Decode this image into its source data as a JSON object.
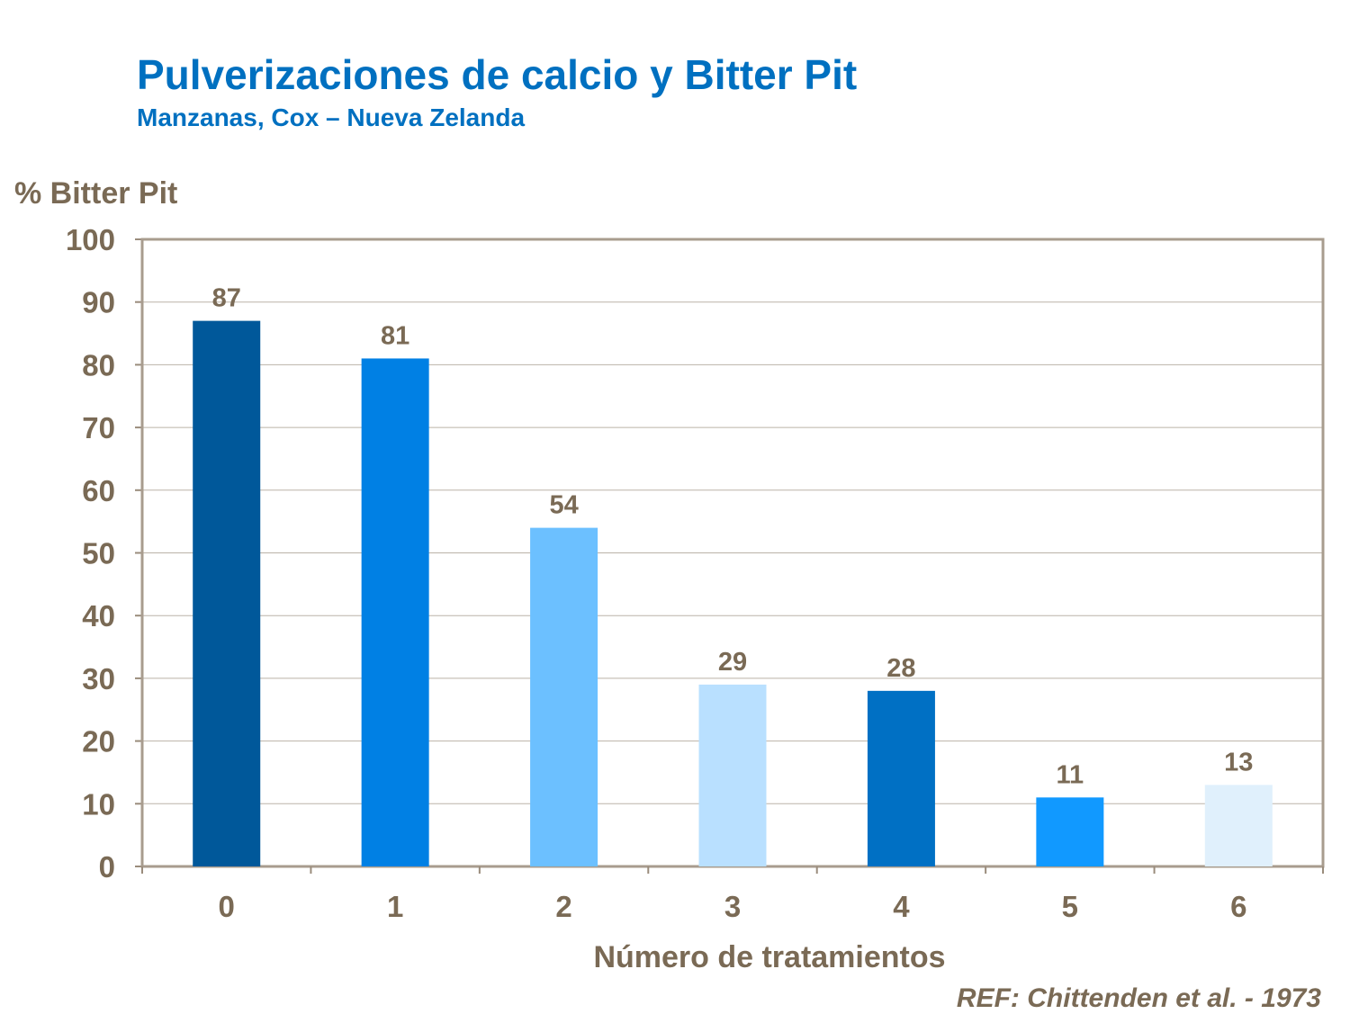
{
  "chart_data": {
    "type": "bar",
    "title": "Pulverizaciones de calcio y Bitter Pit",
    "subtitle": "Manzanas, Cox – Nueva Zelanda",
    "xlabel": "Número de tratamientos",
    "ylabel": "% Bitter Pit",
    "categories": [
      "0",
      "1",
      "2",
      "3",
      "4",
      "5",
      "6"
    ],
    "values": [
      87,
      81,
      54,
      29,
      28,
      11,
      13
    ],
    "ylim": [
      0,
      100
    ],
    "yticks": [
      0,
      10,
      20,
      30,
      40,
      50,
      60,
      70,
      80,
      90,
      100
    ],
    "grid": true,
    "bar_colors": [
      "#00589A",
      "#0080E4",
      "#6CC0FF",
      "#B9E0FF",
      "#0070C4",
      "#1199FF",
      "#E0F0FC"
    ],
    "text_color": "#7A6A55",
    "title_color": "#0070C0"
  },
  "reference": "REF: Chittenden et al. - 1973"
}
